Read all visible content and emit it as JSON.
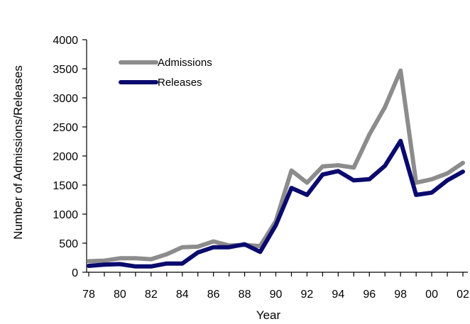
{
  "chart_data": {
    "type": "line",
    "title": "",
    "xlabel": "Year",
    "ylabel": "Number of Admissions/Releases",
    "xlim": [
      1978,
      2002
    ],
    "ylim": [
      0,
      4000
    ],
    "x_ticks": [
      {
        "value": 1978,
        "label": "78"
      },
      {
        "value": 1980,
        "label": "80"
      },
      {
        "value": 1982,
        "label": "82"
      },
      {
        "value": 1984,
        "label": "84"
      },
      {
        "value": 1986,
        "label": "86"
      },
      {
        "value": 1988,
        "label": "88"
      },
      {
        "value": 1990,
        "label": "90"
      },
      {
        "value": 1992,
        "label": "92"
      },
      {
        "value": 1994,
        "label": "94"
      },
      {
        "value": 1996,
        "label": "96"
      },
      {
        "value": 1998,
        "label": "98"
      },
      {
        "value": 2000,
        "label": "00"
      },
      {
        "value": 2002,
        "label": "02"
      }
    ],
    "y_ticks": [
      0,
      500,
      1000,
      1500,
      2000,
      2500,
      3000,
      3500,
      4000
    ],
    "grid": false,
    "legend_position": "top-left",
    "x": [
      1978,
      1979,
      1980,
      1981,
      1982,
      1983,
      1984,
      1985,
      1986,
      1987,
      1988,
      1989,
      1990,
      1991,
      1992,
      1993,
      1994,
      1995,
      1996,
      1997,
      1998,
      1999,
      2000,
      2001,
      2002
    ],
    "series": [
      {
        "name": "Admissions",
        "color": "#8c8c8c",
        "values": [
          190,
          200,
          240,
          240,
          225,
          310,
          430,
          440,
          530,
          460,
          470,
          450,
          880,
          1750,
          1540,
          1820,
          1840,
          1800,
          2370,
          2840,
          3470,
          1540,
          1600,
          1700,
          1880
        ]
      },
      {
        "name": "Releases",
        "color": "#0a0a6e",
        "values": [
          110,
          130,
          140,
          100,
          100,
          150,
          150,
          340,
          430,
          430,
          480,
          350,
          810,
          1450,
          1330,
          1680,
          1740,
          1580,
          1600,
          1830,
          2260,
          1330,
          1370,
          1580,
          1730
        ]
      }
    ]
  }
}
